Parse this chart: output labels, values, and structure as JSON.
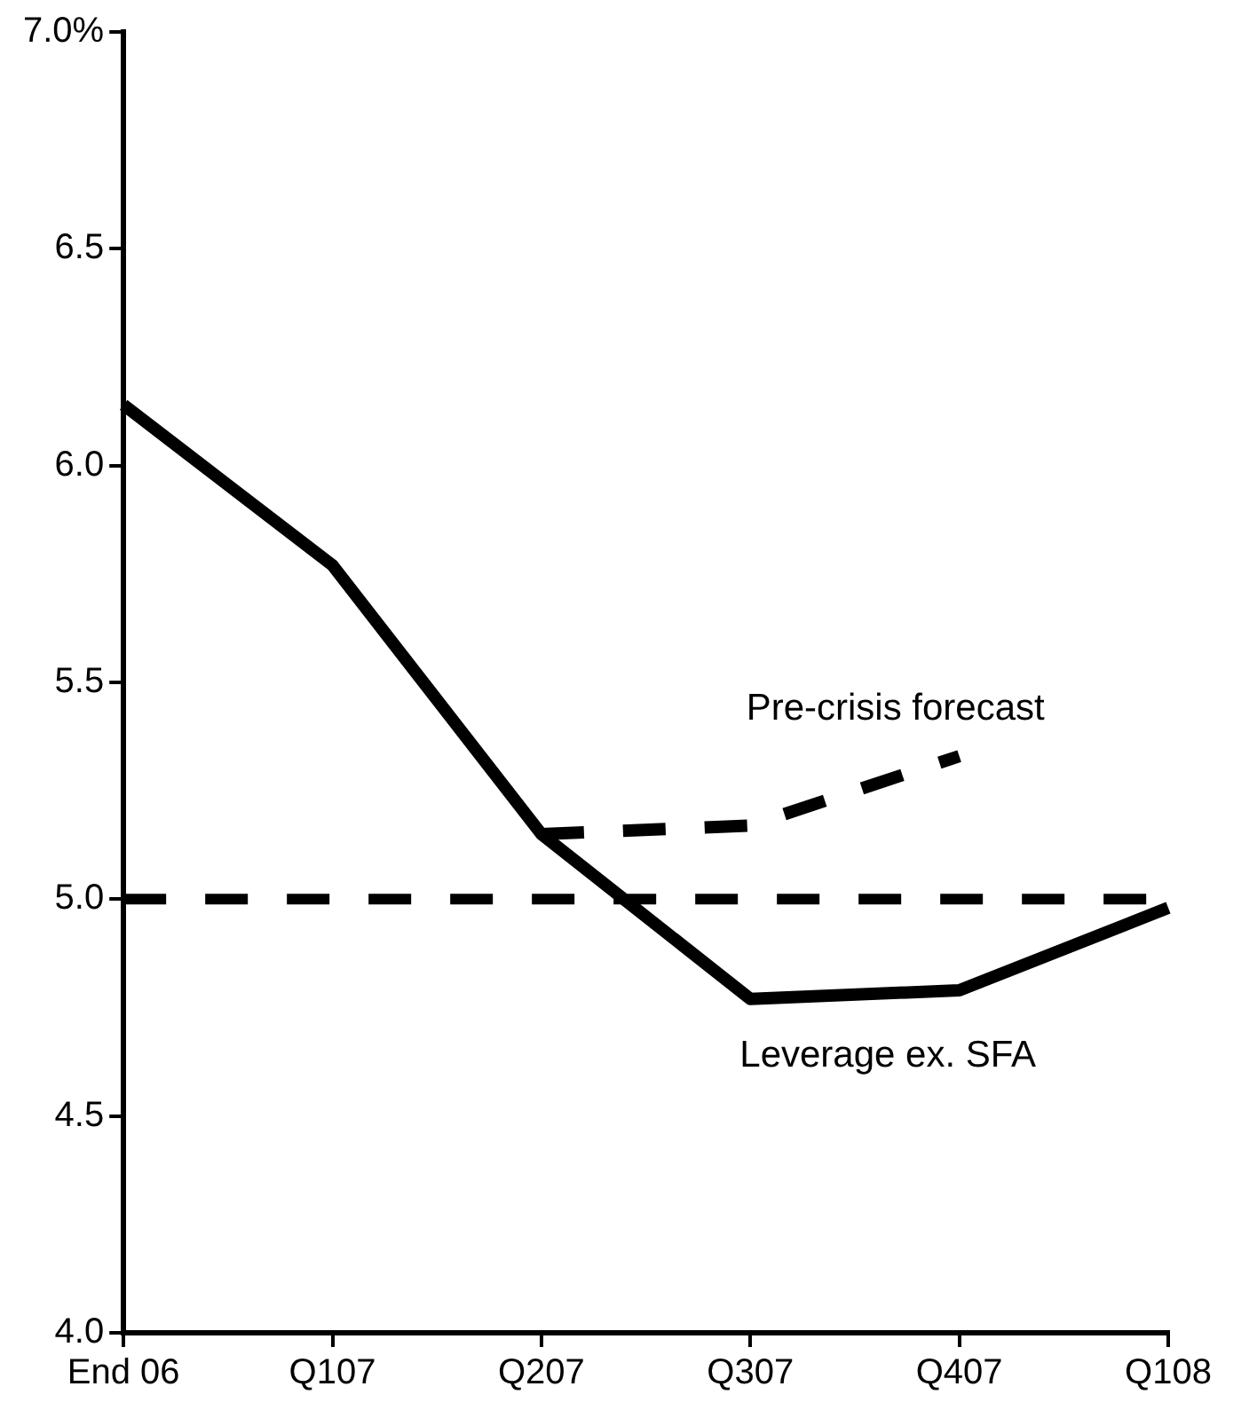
{
  "chart_data": {
    "type": "line",
    "categories": [
      "End 06",
      "Q107",
      "Q207",
      "Q307",
      "Q407",
      "Q108"
    ],
    "ylim": [
      4,
      7
    ],
    "yticks": [
      {
        "value": 4,
        "label": "4.0"
      },
      {
        "value": 4.5,
        "label": "4.5"
      },
      {
        "value": 5,
        "label": "5.0"
      },
      {
        "value": 5.5,
        "label": "5.5"
      },
      {
        "value": 6,
        "label": "6.0"
      },
      {
        "value": 6.5,
        "label": "6.5"
      },
      {
        "value": 7,
        "label": "7.0%"
      }
    ],
    "series": [
      {
        "name": "Leverage ex. SFA",
        "color": "#000000",
        "values": [
          6.14,
          5.77,
          5.15,
          4.77,
          4.79,
          4.98
        ],
        "line_style": "solid"
      },
      {
        "name": "Pre-crisis forecast",
        "color": "#000000",
        "values": [
          null,
          null,
          5.15,
          5.17,
          5.33,
          null
        ],
        "line_style": "dashed"
      }
    ],
    "ref_lines": [
      {
        "axis": "y",
        "value": 5,
        "color": "#000000",
        "line_style": "dashed"
      }
    ],
    "grid": false,
    "legend": false,
    "marker": "none"
  }
}
